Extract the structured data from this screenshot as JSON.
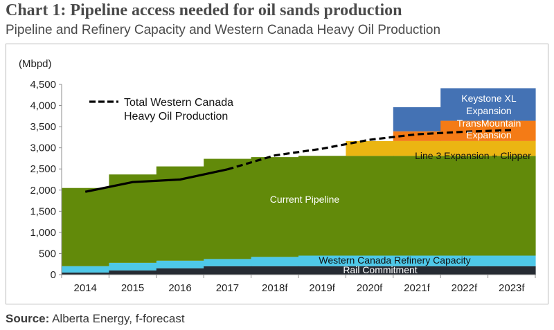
{
  "title": "Chart 1: Pipeline access needed for oil sands production",
  "subtitle": "Pipeline and Refinery Capacity and Western Canada Heavy Oil Production",
  "source_label": "Source:",
  "source_text": "Alberta Energy, f-forecast",
  "colors": {
    "rail": "#262b33",
    "refinery": "#4ec8e8",
    "current_pipeline": "#628a0a",
    "line3": "#ebb512",
    "transmountain": "#f47b16",
    "keystone": "#4472b4",
    "production_line": "#000000"
  },
  "chart_data": {
    "type": "area",
    "title": "",
    "ylabel": "(Mbpd)",
    "xlabel": "",
    "ylim": [
      0,
      4500
    ],
    "yticks": [
      "0",
      "500",
      "1,000",
      "1,500",
      "2,000",
      "2,500",
      "3,000",
      "3,500",
      "4,000",
      "4,500"
    ],
    "categories": [
      "2014",
      "2015",
      "2016",
      "2017",
      "2018f",
      "2019f",
      "2020f",
      "2021f",
      "2022f",
      "2023f"
    ],
    "stacked": true,
    "series": [
      {
        "name": "Rail Commitment",
        "values": [
          50,
          100,
          150,
          200,
          200,
          200,
          200,
          200,
          200,
          200
        ]
      },
      {
        "name": "Western Canada Refinery Capacity",
        "values": [
          150,
          180,
          180,
          170,
          220,
          250,
          250,
          250,
          250,
          250
        ]
      },
      {
        "name": "Current Pipeline",
        "values": [
          1850,
          2090,
          2230,
          2370,
          2360,
          2360,
          2360,
          2360,
          2360,
          2360
        ]
      },
      {
        "name": "Line 3 Expansion + Clipper",
        "values": [
          0,
          0,
          0,
          0,
          0,
          0,
          350,
          350,
          350,
          350
        ]
      },
      {
        "name": "TransMountain Expansion",
        "values": [
          0,
          0,
          0,
          0,
          0,
          0,
          0,
          230,
          480,
          480
        ]
      },
      {
        "name": "Keystone XL Expansion",
        "values": [
          0,
          0,
          0,
          0,
          0,
          0,
          0,
          570,
          770,
          770
        ]
      }
    ],
    "line_series": {
      "name": "Total Western Canada Heavy Oil Production",
      "values": [
        1960,
        2190,
        2250,
        2490,
        2820,
        2980,
        3190,
        3320,
        3380,
        3420
      ],
      "forecast_from_index": 4
    },
    "legend": [
      "Total Western Canada",
      "Heavy Oil Production"
    ],
    "grid": false
  }
}
